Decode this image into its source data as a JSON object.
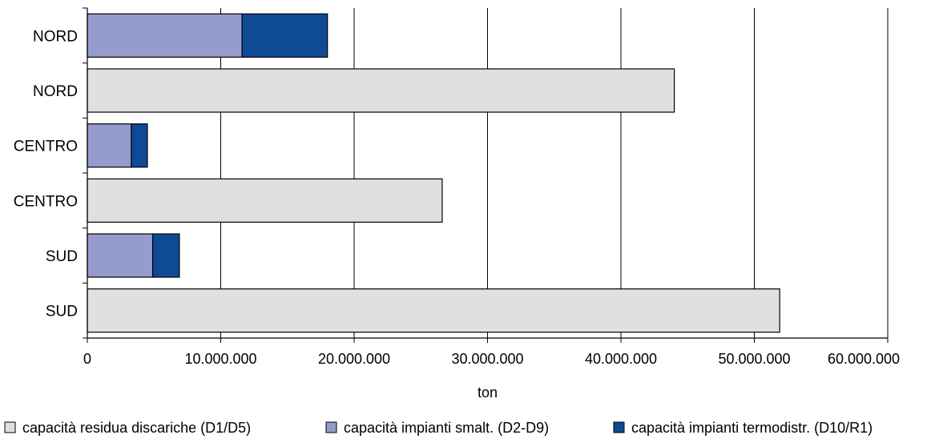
{
  "chart_data": {
    "type": "bar",
    "orientation": "horizontal",
    "stacked": true,
    "categories": [
      "NORD",
      "NORD",
      "CENTRO",
      "CENTRO",
      "SUD",
      "SUD"
    ],
    "series": [
      {
        "name": "capacità residua discariche (D1/D5)",
        "color": "#e0e0e0",
        "values": [
          0,
          44000000,
          0,
          26600000,
          0,
          51900000
        ]
      },
      {
        "name": "capacità impianti smalt. (D2-D9)",
        "color": "#959bcc",
        "values": [
          11600000,
          0,
          3300000,
          0,
          4900000,
          0
        ]
      },
      {
        "name": "capacità impianti termodistr. (D10/R1)",
        "color": "#0f4a96",
        "values": [
          6400000,
          0,
          1200000,
          0,
          2000000,
          0
        ]
      }
    ],
    "xlabel": "ton",
    "ylabel": "",
    "title": "",
    "xlim": [
      0,
      60000000
    ],
    "x_ticks": [
      0,
      10000000,
      20000000,
      30000000,
      40000000,
      50000000,
      60000000
    ],
    "x_tick_labels": [
      "0",
      "10.000.000",
      "20.000.000",
      "30.000.000",
      "40.000.000",
      "50.000.000",
      "60.000.000"
    ],
    "grid": "vertical",
    "legend_position": "bottom"
  }
}
